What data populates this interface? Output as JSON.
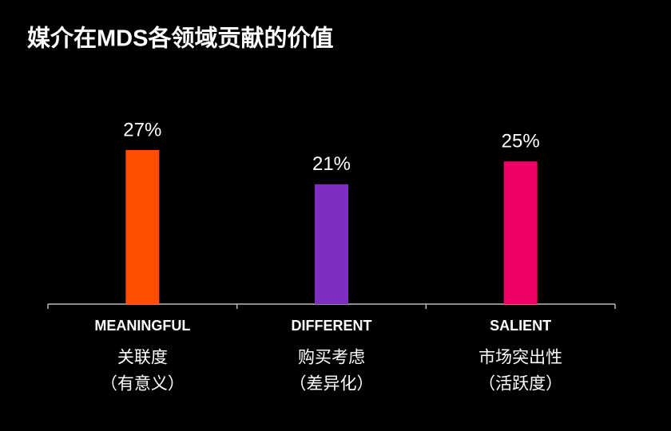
{
  "chart_data": {
    "type": "bar",
    "title": "媒介在MDS各领域贡献的价值",
    "categories": [
      "MEANINGFUL",
      "DIFFERENT",
      "SALIENT"
    ],
    "category_notes": [
      [
        "关联度",
        "（有意义）"
      ],
      [
        "购买考虑",
        "（差异化）"
      ],
      [
        "市场突出性",
        "（活跃度）"
      ]
    ],
    "values": [
      27,
      21,
      25
    ],
    "value_labels": [
      "27%",
      "21%",
      "25%"
    ],
    "colors": [
      "#ff5000",
      "#7f2fbf",
      "#ee0066"
    ],
    "ylim": [
      0,
      30
    ]
  }
}
